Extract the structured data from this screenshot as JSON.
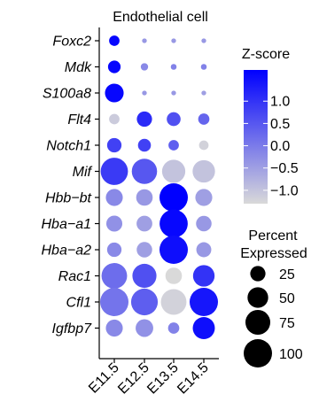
{
  "chart_data": {
    "type": "dotplot",
    "title": "Endothelial cell",
    "genes": [
      "Foxc2",
      "Mdk",
      "S100a8",
      "Flt4",
      "Notch1",
      "Mif",
      "Hbb−bt",
      "Hba−a1",
      "Hba−a2",
      "Rac1",
      "Cfl1",
      "Igfbp7"
    ],
    "x": [
      "E11.5",
      "E12.5",
      "E13.5",
      "E14.5"
    ],
    "zscore": [
      [
        1.6,
        -0.4,
        -0.4,
        -0.4
      ],
      [
        1.6,
        -0.2,
        -0.1,
        -0.1
      ],
      [
        1.6,
        -0.4,
        -0.4,
        -0.5
      ],
      [
        -1.1,
        1.1,
        0.6,
        0.3
      ],
      [
        0.8,
        0.8,
        0.4,
        -1.2
      ],
      [
        0.9,
        0.5,
        -1.0,
        -1.0
      ],
      [
        -0.2,
        -0.4,
        1.7,
        -0.5
      ],
      [
        -0.3,
        -0.5,
        1.6,
        -0.4
      ],
      [
        -0.2,
        -0.5,
        1.5,
        -0.4
      ],
      [
        0.2,
        0.6,
        -1.3,
        1.0
      ],
      [
        0.1,
        0.4,
        -1.2,
        1.4
      ],
      [
        -0.2,
        -0.3,
        -0.1,
        1.5
      ]
    ],
    "percent_expressed": [
      [
        10,
        1,
        1,
        1
      ],
      [
        16,
        4,
        2,
        2
      ],
      [
        40,
        1,
        1,
        1
      ],
      [
        10,
        25,
        20,
        12
      ],
      [
        22,
        17,
        10,
        8
      ],
      [
        92,
        78,
        65,
        60
      ],
      [
        32,
        30,
        100,
        32
      ],
      [
        28,
        27,
        98,
        26
      ],
      [
        22,
        26,
        100,
        24
      ],
      [
        80,
        70,
        30,
        55
      ],
      [
        100,
        88,
        80,
        100
      ],
      [
        32,
        35,
        12,
        58
      ]
    ],
    "color_legend": {
      "title": "Z-score",
      "ticks": [
        "1.0",
        "0.5",
        "0.0",
        "−0.5",
        "−1.0"
      ],
      "tick_values": [
        1.0,
        0.5,
        0.0,
        -0.5,
        -1.0
      ],
      "range": [
        -1.3,
        1.7
      ],
      "low_color": "#d9d9d9",
      "high_color": "#0000ff"
    },
    "size_legend": {
      "title_line1": "Percent",
      "title_line2": "Expressed",
      "labels": [
        "25",
        "50",
        "75",
        "100"
      ],
      "values": [
        25,
        50,
        75,
        100
      ]
    }
  }
}
